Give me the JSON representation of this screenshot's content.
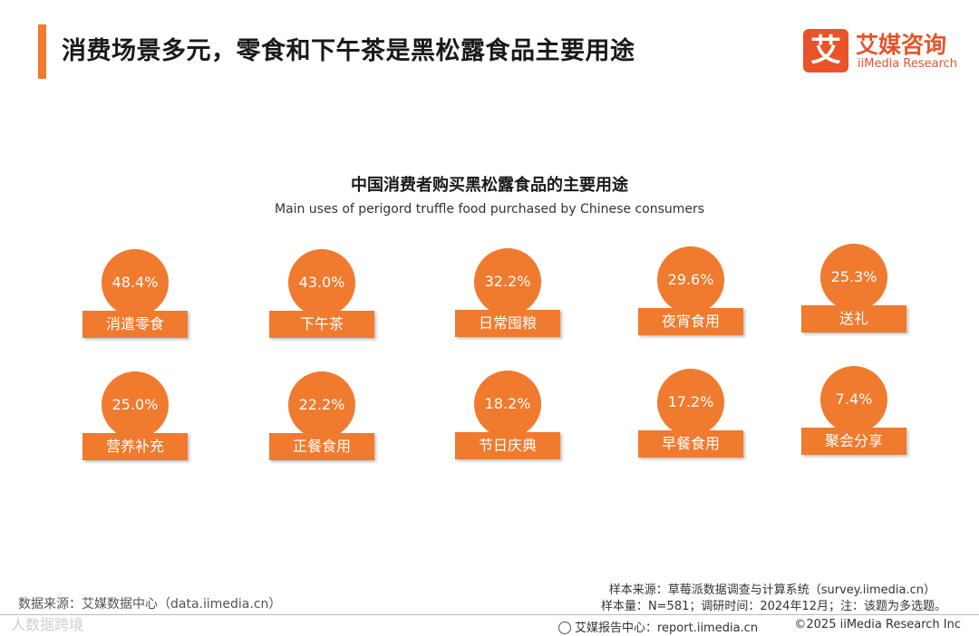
{
  "colors": {
    "accent": "#f07a2e",
    "logo": "#e8532a"
  },
  "header": {
    "title": "消费场景多元，零食和下午茶是黑松露食品主要用途"
  },
  "logo": {
    "mark": "艾",
    "name_cn": "艾媒咨询",
    "name_en": "iiMedia Research"
  },
  "chart_data": {
    "type": "bubble-list",
    "title": "中国消费者购买黑松露食品的主要用途",
    "subtitle": "Main uses of perigord truffle food purchased by Chinese consumers",
    "unit": "%",
    "categories": [
      "消遣零食",
      "下午茶",
      "日常囤粮",
      "夜宵食用",
      "送礼",
      "营养补充",
      "正餐食用",
      "节日庆典",
      "早餐食用",
      "聚会分享"
    ],
    "values": [
      48.4,
      43.0,
      32.2,
      29.6,
      25.3,
      25.0,
      22.2,
      18.2,
      17.2,
      7.4
    ],
    "value_labels": [
      "48.4%",
      "43.0%",
      "32.2%",
      "29.6%",
      "25.3%",
      "25.0%",
      "22.2%",
      "18.2%",
      "17.2%",
      "7.4%"
    ]
  },
  "footer": {
    "data_source": "数据来源：艾媒数据中心（data.iimedia.cn）",
    "sample_source": "样本来源：草莓派数据调查与计算系统（survey.iimedia.cn）",
    "sample_size": "样本量：N=581；调研时间：2024年12月；注：该题为多选题。",
    "report_center": "艾媒报告中心：report.iimedia.cn",
    "copyright": "©2025  iiMedia Research  Inc",
    "watermark": "人数据跨境"
  }
}
